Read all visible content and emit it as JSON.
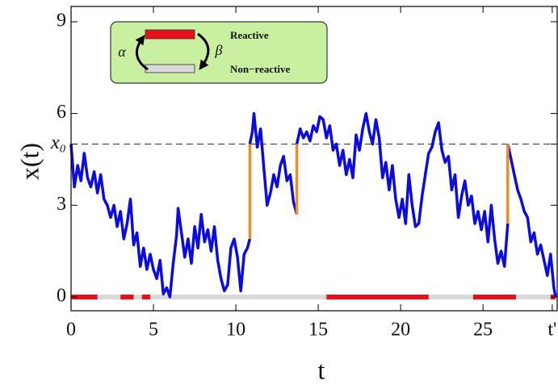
{
  "chart_data": {
    "type": "line",
    "xlabel": "t",
    "ylabel": "x(t)",
    "xlim": [
      0,
      29.5
    ],
    "ylim": [
      -0.45,
      9.5
    ],
    "xticks": [
      0,
      5,
      10,
      15,
      20,
      25,
      {
        "value": 29.2,
        "label": "t'"
      }
    ],
    "yticks": [
      0,
      3,
      6,
      9,
      {
        "value": 5,
        "label": "x₀"
      }
    ],
    "reference_y": 5,
    "x": [
      0,
      0.2,
      0.4,
      0.6,
      0.8,
      1.0,
      1.2,
      1.4,
      1.6,
      1.8,
      2.0,
      2.2,
      2.4,
      2.6,
      2.8,
      3.0,
      3.2,
      3.4,
      3.6,
      3.8,
      4.0,
      4.2,
      4.4,
      4.6,
      4.8,
      5.0,
      5.2,
      5.4,
      5.6,
      5.8,
      6.0,
      6.2,
      6.4,
      6.5,
      6.7,
      6.9,
      7.1,
      7.3,
      7.5,
      7.7,
      7.9,
      8.1,
      8.3,
      8.5,
      8.7,
      8.9,
      9.1,
      9.3,
      9.5,
      9.7,
      9.9,
      10.1,
      10.3,
      10.5,
      10.7,
      10.85,
      10.85,
      10.85,
      11.0,
      11.1,
      11.3,
      11.5,
      11.7,
      11.9,
      12.1,
      12.3,
      12.5,
      12.7,
      12.9,
      13.1,
      13.3,
      13.5,
      13.7,
      13.7,
      13.7,
      13.9,
      14.1,
      14.3,
      14.5,
      14.7,
      14.9,
      15.1,
      15.3,
      15.5,
      15.7,
      15.9,
      16.1,
      16.3,
      16.5,
      16.7,
      16.9,
      17.1,
      17.3,
      17.5,
      17.7,
      17.9,
      18.1,
      18.3,
      18.5,
      18.7,
      18.9,
      19.1,
      19.3,
      19.5,
      19.7,
      19.9,
      20.1,
      20.3,
      20.5,
      20.7,
      20.9,
      21.1,
      21.3,
      21.5,
      21.7,
      21.9,
      22.1,
      22.3,
      22.5,
      22.7,
      22.9,
      23.1,
      23.3,
      23.5,
      23.7,
      23.9,
      24.1,
      24.3,
      24.5,
      24.7,
      24.9,
      25.1,
      25.3,
      25.5,
      25.7,
      25.9,
      26.1,
      26.3,
      26.5,
      26.5,
      26.5,
      26.7,
      26.9,
      27.1,
      27.3,
      27.5,
      27.7,
      27.9,
      28.1,
      28.3,
      28.5,
      28.7,
      28.9,
      29.1,
      29.3,
      29.4
    ],
    "series": [
      {
        "color": "#0c0cdc",
        "values": [
          5.0,
          3.6,
          4.3,
          3.8,
          4.7,
          3.9,
          3.6,
          4.1,
          3.4,
          4.0,
          3.2,
          3.0,
          2.6,
          3.0,
          2.3,
          2.8,
          1.9,
          2.4,
          3.2,
          1.7,
          2.1,
          1.0,
          1.6,
          0.9,
          1.4,
          0.9,
          0.6,
          1.2,
          0.1,
          0.3,
          0.0,
          1.1,
          2.0,
          2.9,
          2.1,
          1.3,
          1.9,
          1.1,
          2.3,
          1.6,
          2.7,
          1.8,
          2.2,
          1.5,
          2.3,
          1.2,
          0.6,
          0.2,
          0.4,
          1.6,
          1.9,
          1.3,
          0.2,
          1.4,
          1.6,
          1.9,
          null,
          5.0,
          5.4,
          6.0,
          4.9,
          5.5,
          4.2,
          3.0,
          3.4,
          4.0,
          3.6,
          4.3,
          4.6,
          3.8,
          4.0,
          3.1,
          2.7,
          null,
          5.0,
          5.5,
          5.2,
          5.4,
          5.1,
          5.6,
          5.4,
          5.9,
          5.8,
          5.2,
          5.6,
          4.8,
          5.0,
          4.3,
          4.8,
          4.0,
          4.5,
          3.9,
          5.3,
          4.8,
          5.5,
          6.0,
          5.4,
          5.0,
          5.8,
          5.2,
          3.9,
          4.4,
          3.5,
          4.3,
          3.2,
          2.6,
          3.2,
          2.4,
          4.0,
          3.0,
          2.3,
          2.4,
          3.3,
          4.0,
          4.7,
          4.9,
          5.4,
          5.7,
          4.8,
          4.4,
          4.6,
          3.5,
          4.0,
          2.6,
          3.3,
          3.8,
          3.0,
          3.3,
          2.4,
          2.8,
          2.2,
          2.8,
          1.8,
          3.0,
          1.9,
          1.1,
          1.5,
          1.0,
          2.4,
          null,
          5.0,
          4.5,
          4.0,
          3.5,
          3.2,
          2.8,
          2.6,
          1.8,
          2.1,
          1.4,
          1.7,
          1.2,
          0.7,
          1.4,
          0.3,
          0.0
        ]
      }
    ],
    "resets": {
      "color": "#f28c28",
      "x": [
        10.85,
        13.7,
        26.5
      ],
      "from": [
        1.9,
        2.7,
        2.4
      ],
      "to": [
        5,
        5,
        5
      ]
    },
    "states": {
      "reactive_color": "#e8101a",
      "nonreactive_color": "#d9d9d9",
      "start": [
        0,
        3.0,
        4.3,
        15.5,
        24.4,
        29.1
      ],
      "end": [
        1.6,
        3.8,
        4.8,
        21.7,
        27.0,
        29.4
      ]
    },
    "inset": {
      "reactive": "Reactive",
      "nonreactive": "Non−reactive",
      "alpha": "α",
      "beta": "β"
    }
  }
}
